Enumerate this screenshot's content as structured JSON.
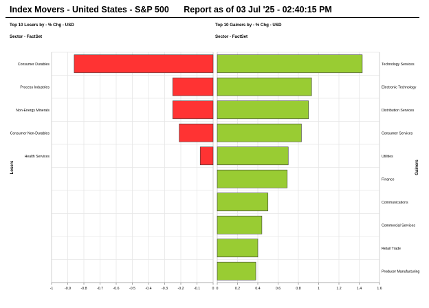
{
  "header": {
    "title": "Index Movers - United States - S&P 500",
    "report": "Report as of 03 Jul '25 - 02:40:15 PM"
  },
  "panels": {
    "left_title": "Top 10 Losers by - % Chg - USD",
    "left_sector": "Sector - FactSet",
    "right_title": "Top 10 Gainers by - % Chg - USD",
    "right_sector": "Sector - FactSet"
  },
  "colors": {
    "losers": "#ff3333",
    "gainers": "#99cc33",
    "grid": "#e6e6e6"
  },
  "chart_data": [
    {
      "type": "bar",
      "orientation": "horizontal",
      "ylabel": "Losers",
      "categories": [
        "Consumer Durables",
        "Process Industries",
        "Non-Energy Minerals",
        "Consumer Non-Durables",
        "Health Services",
        "",
        "",
        "",
        "",
        ""
      ],
      "values": [
        -0.86,
        -0.25,
        -0.25,
        -0.21,
        -0.08,
        null,
        null,
        null,
        null,
        null
      ],
      "xlim": [
        -1,
        0
      ],
      "xticks": [
        "-1",
        "-0.9",
        "-0.8",
        "-0.7",
        "-0.6",
        "-0.5",
        "-0.4",
        "-0.3",
        "-0.2",
        "-0.1",
        "0"
      ],
      "grid": true
    },
    {
      "type": "bar",
      "orientation": "horizontal",
      "ylabel": "Gainers",
      "categories": [
        "Technology Services",
        "Electronic Technology",
        "Distribution Services",
        "Consumer Services",
        "Utilities",
        "Finance",
        "Communications",
        "Commercial Services",
        "Retail Trade",
        "Producer Manufacturing"
      ],
      "values": [
        1.43,
        0.93,
        0.9,
        0.83,
        0.7,
        0.69,
        0.5,
        0.44,
        0.4,
        0.38
      ],
      "xlim": [
        0,
        1.6
      ],
      "xticks": [
        "0",
        "0.2",
        "0.4",
        "0.6",
        "0.8",
        "1",
        "1.2",
        "1.4",
        "1.6"
      ],
      "grid": true
    }
  ]
}
